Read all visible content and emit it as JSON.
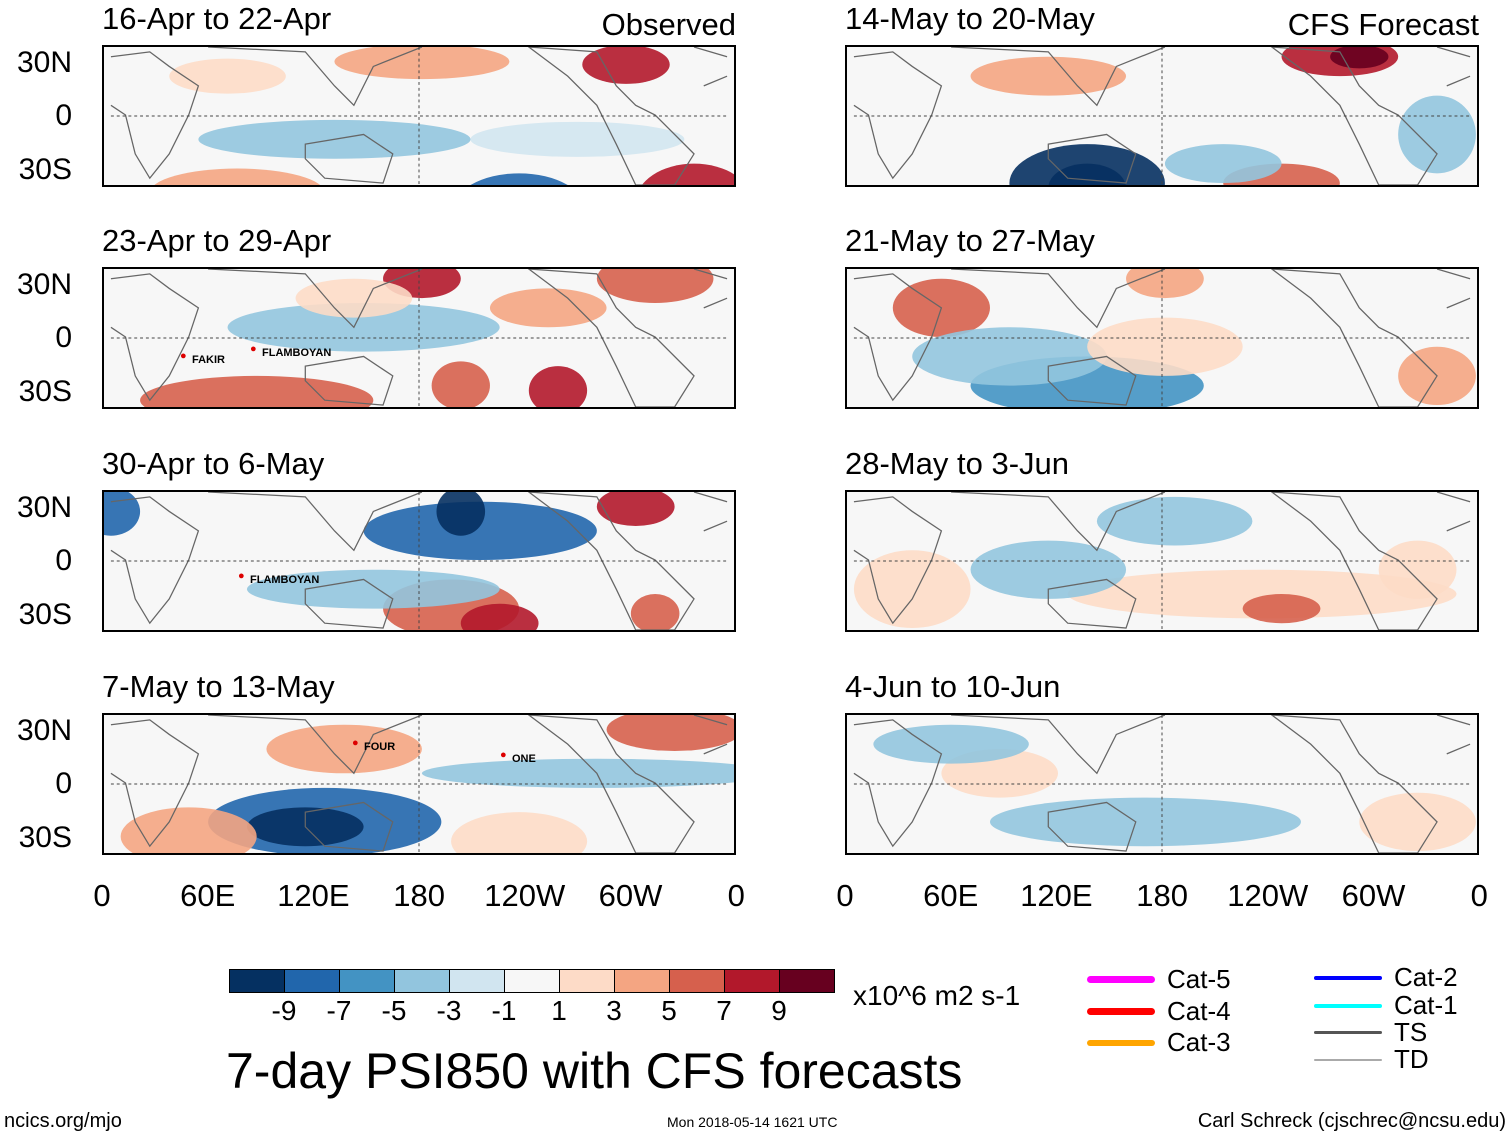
{
  "header": {
    "left_label": "Observed",
    "right_label": "CFS Forecast"
  },
  "panels": {
    "observed": [
      {
        "title": "16-Apr to 22-Apr",
        "storms": []
      },
      {
        "title": "23-Apr to 29-Apr",
        "storms": [
          {
            "name": "FAKIR"
          },
          {
            "name": "FLAMBOYAN"
          }
        ]
      },
      {
        "title": "30-Apr to 6-May",
        "storms": [
          {
            "name": "FLAMBOYAN"
          }
        ]
      },
      {
        "title": "7-May to 13-May",
        "storms": [
          {
            "name": "FOUR"
          },
          {
            "name": "ONE"
          }
        ]
      }
    ],
    "forecast": [
      {
        "title": "14-May to 20-May"
      },
      {
        "title": "21-May to 27-May"
      },
      {
        "title": "28-May to 3-Jun"
      },
      {
        "title": "4-Jun to 10-Jun"
      }
    ]
  },
  "axes": {
    "y_ticks": [
      "30N",
      "0",
      "30S"
    ],
    "x_ticks": [
      "0",
      "60E",
      "120E",
      "180",
      "120W",
      "60W",
      "0"
    ]
  },
  "colorbar": {
    "colors": [
      "#053061",
      "#2166ac",
      "#4393c3",
      "#92c5de",
      "#d1e5f0",
      "#f7f7f7",
      "#fddbc7",
      "#f4a582",
      "#d6604d",
      "#b2182b",
      "#67001f"
    ],
    "ticks": [
      "-9",
      "-7",
      "-5",
      "-3",
      "-1",
      "1",
      "3",
      "5",
      "7",
      "9"
    ],
    "units": "x10^6 m2 s-1"
  },
  "title": "7-day PSI850 with CFS forecasts",
  "legend": [
    {
      "label": "Cat-5",
      "color": "#ff00ff"
    },
    {
      "label": "Cat-4",
      "color": "#ff0000"
    },
    {
      "label": "Cat-3",
      "color": "#ffa500"
    },
    {
      "label": "Cat-2",
      "color": "#0000ff"
    },
    {
      "label": "Cat-1",
      "color": "#00ffff"
    },
    {
      "label": "TS",
      "color": "#555555"
    },
    {
      "label": "TD",
      "color": "#aaaaaa"
    }
  ],
  "footer": {
    "left": "ncics.org/mjo",
    "center": "Mon 2018-05-14 1621 UTC",
    "right": "Carl Schreck (cjschrec@ncsu.edu)"
  }
}
